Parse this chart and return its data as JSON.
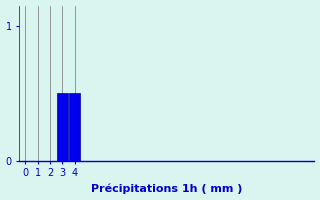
{
  "categories": [
    0,
    1,
    2,
    3,
    4
  ],
  "values": [
    0,
    0,
    0,
    0.5,
    0.5
  ],
  "bar_color": "#0000ee",
  "bar_edge_color": "#000099",
  "background_color": "#d8f5f0",
  "xlabel": "Précipitations 1h ( mm )",
  "xlabel_color": "#0000cc",
  "xlabel_fontsize": 8,
  "tick_color": "#0000cc",
  "tick_fontsize": 7,
  "ytick_values": [
    0,
    1
  ],
  "ylim": [
    0,
    1.15
  ],
  "xlim": [
    -0.5,
    23.5
  ],
  "grid_color": "#888888",
  "grid_linewidth": 0.6,
  "bar_width": 0.9
}
